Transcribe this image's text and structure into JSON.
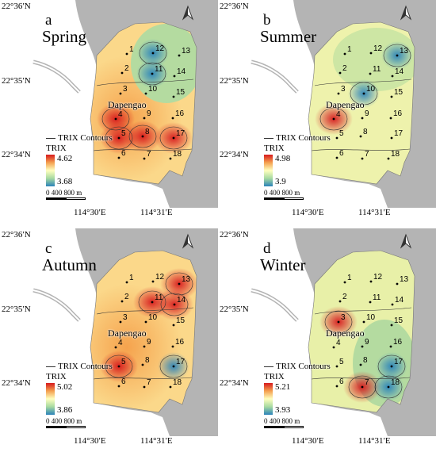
{
  "lat_labels": [
    "22°36′N",
    "22°35′N",
    "22°34′N"
  ],
  "lon_labels": [
    "114°30′E",
    "114°31′E"
  ],
  "place_label": "Dapengao",
  "contour_legend": "TRIX Contours",
  "legend_title": "TRIX",
  "scale_text": "0   400  800 m",
  "north_arrow_icon": "north-arrow-icon",
  "site_labels": [
    "1",
    "2",
    "3",
    "4",
    "5",
    "6",
    "7",
    "8",
    "9",
    "10",
    "11",
    "12",
    "13",
    "14",
    "15",
    "16",
    "17",
    "18"
  ],
  "panels": {
    "a": {
      "letter": "a",
      "season": "Spring",
      "legend_max": "4.62",
      "legend_min": "3.68",
      "high_sites": [
        "4",
        "5",
        "8",
        "17"
      ],
      "low_sites": [
        "11",
        "12"
      ]
    },
    "b": {
      "letter": "b",
      "season": "Summer",
      "legend_max": "4.98",
      "legend_min": "3.9",
      "high_sites": [
        "4"
      ],
      "low_sites": [
        "10",
        "13"
      ]
    },
    "c": {
      "letter": "c",
      "season": "Autumn",
      "legend_max": "5.02",
      "legend_min": "3.86",
      "high_sites": [
        "5",
        "11",
        "13",
        "14"
      ],
      "low_sites": [
        "17"
      ]
    },
    "d": {
      "letter": "d",
      "season": "Winter",
      "legend_max": "5.21",
      "legend_min": "3.93",
      "high_sites": [
        "3",
        "7"
      ],
      "low_sites": [
        "17",
        "18"
      ]
    }
  },
  "colors": {
    "land": "#b4b4b4",
    "sea": "#ffffff",
    "high": "#d7191c",
    "mid": "#ffffbf",
    "low": "#2b83ba"
  }
}
